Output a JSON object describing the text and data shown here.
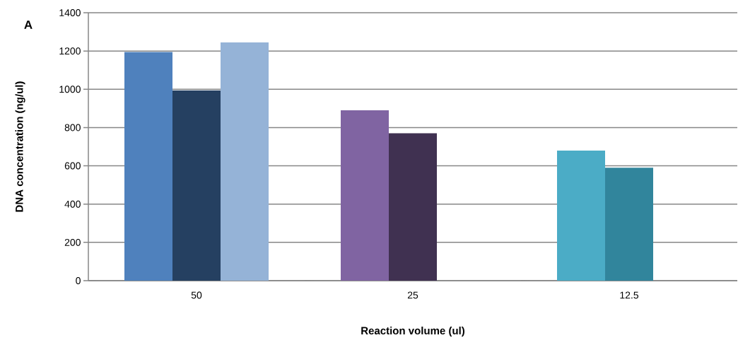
{
  "chart_data": {
    "type": "bar",
    "xlabel": "Reaction volume (ul)",
    "ylabel": "DNA concentration  (ng/ul)",
    "annotations": [
      "A"
    ],
    "categories": [
      "50",
      "25",
      "12.5"
    ],
    "series": [
      {
        "values": [
          1195,
          890,
          680
        ],
        "colors": [
          "#4f81bd",
          "#8064a2",
          "#4bacc6"
        ]
      },
      {
        "values": [
          995,
          770,
          590
        ],
        "colors": [
          "#254061",
          "#403151",
          "#31859c"
        ]
      },
      {
        "values": [
          1245,
          null,
          null
        ],
        "colors": [
          "#95b3d7",
          "#95b3d7",
          "#95b3d7"
        ]
      }
    ],
    "ylim": [
      0,
      1400
    ],
    "yticks": [
      0,
      200,
      400,
      600,
      800,
      1000,
      1200,
      1400
    ],
    "grid": "y"
  }
}
